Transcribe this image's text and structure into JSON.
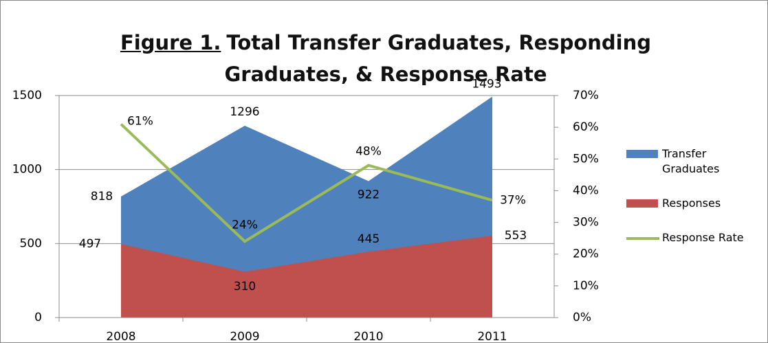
{
  "chart_data": {
    "type": "area-line",
    "figure_label": "Figure 1.",
    "title": "Total Transfer Graduates, Responding Graduates, & Response Rate",
    "categories": [
      "2008",
      "2009",
      "2010",
      "2011"
    ],
    "series": [
      {
        "name": "Transfer Graduates",
        "color": "#4f81bd",
        "type": "area",
        "values": [
          818,
          1296,
          922,
          1493
        ]
      },
      {
        "name": "Responses",
        "color": "#c0504d",
        "type": "area",
        "values": [
          497,
          310,
          445,
          553
        ]
      },
      {
        "name": "Response Rate",
        "color": "#9bbb59",
        "type": "line",
        "axis": "y2",
        "values": [
          61,
          24,
          48,
          37
        ],
        "value_labels": [
          "61%",
          "24%",
          "48%",
          "37%"
        ]
      }
    ],
    "ylim": [
      0,
      1500
    ],
    "yticks": [
      0,
      500,
      1000,
      1500
    ],
    "y2lim": [
      0,
      70
    ],
    "y2ticks": [
      {
        "value": 0,
        "label": "0%"
      },
      {
        "value": 10,
        "label": "10%"
      },
      {
        "value": 20,
        "label": "20%"
      },
      {
        "value": 30,
        "label": "30%"
      },
      {
        "value": 40,
        "label": "40%"
      },
      {
        "value": 50,
        "label": "50%"
      },
      {
        "value": 60,
        "label": "60%"
      },
      {
        "value": 70,
        "label": "70%"
      }
    ],
    "grid": true,
    "legend": "right"
  }
}
